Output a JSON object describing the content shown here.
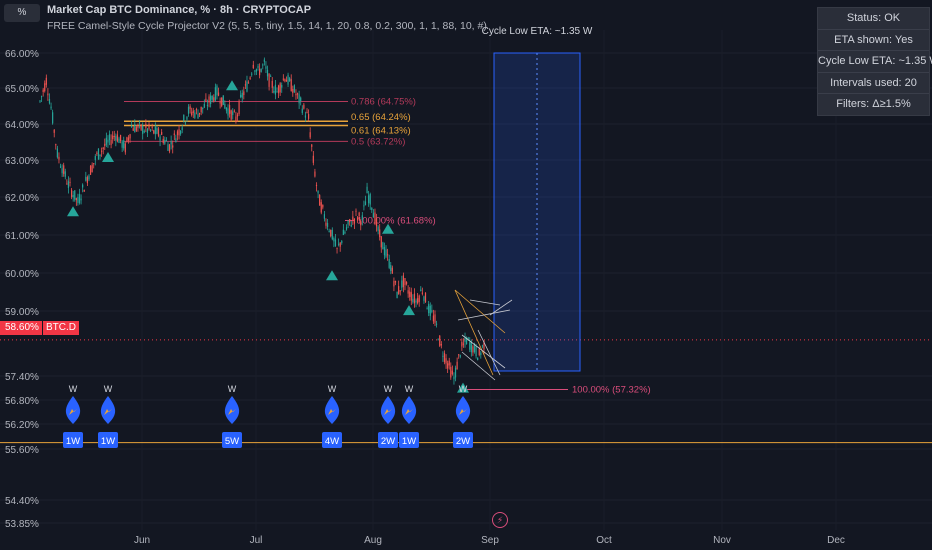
{
  "header": {
    "symbol_box": "%",
    "title": "Market Cap BTC Dominance, % · 8h · CRYPTOCAP",
    "indicator": "FREE Camel-Style Cycle Projector V2 (5, 5, 5, tiny, 1.5, 14, 1, 20, 0.8, 0.2, 300, 1, 1, 88, 10, #)"
  },
  "status_panel": {
    "rows": [
      "Status: OK",
      "ETA shown: Yes",
      "Cycle Low ETA: ~1.35 W",
      "Intervals used: 20",
      "Filters: Δ≥1.5%"
    ]
  },
  "current_price": {
    "value": "58.60%",
    "symbol": "BTC.D"
  },
  "eta_label": "Cycle Low ETA: ~1.35 W",
  "colors": {
    "bg": "#131722",
    "up": "#26a69a",
    "down": "#ef5350",
    "accent": "#f23645",
    "eta_box": "#2962ff"
  },
  "chart_data": {
    "type": "candlestick",
    "y_ticks": [
      "66.00%",
      "65.00%",
      "64.00%",
      "63.00%",
      "62.00%",
      "61.00%",
      "60.00%",
      "59.00%",
      "57.40%",
      "56.80%",
      "56.20%",
      "55.60%",
      "54.40%",
      "53.85%"
    ],
    "x_ticks": [
      "Jun",
      "Jul",
      "Aug",
      "Sep",
      "Oct",
      "Nov",
      "Dec"
    ],
    "price_path": [
      [
        0,
        64.75
      ],
      [
        4,
        65.3
      ],
      [
        7,
        64.6
      ],
      [
        11,
        63.4
      ],
      [
        18,
        62.6
      ],
      [
        24,
        62.15
      ],
      [
        30,
        62.8
      ],
      [
        36,
        63.35
      ],
      [
        42,
        63.65
      ],
      [
        48,
        63.9
      ],
      [
        54,
        63.55
      ],
      [
        58,
        64.1
      ],
      [
        64,
        64.05
      ],
      [
        70,
        64.0
      ],
      [
        76,
        63.9
      ],
      [
        82,
        63.6
      ],
      [
        88,
        64.0
      ],
      [
        94,
        64.5
      ],
      [
        100,
        64.45
      ],
      [
        106,
        64.7
      ],
      [
        112,
        65.0
      ],
      [
        118,
        64.6
      ],
      [
        124,
        64.3
      ],
      [
        128,
        64.9
      ],
      [
        132,
        65.25
      ],
      [
        135,
        65.75
      ],
      [
        138,
        65.5
      ],
      [
        142,
        65.7
      ],
      [
        145,
        65.3
      ],
      [
        150,
        65.0
      ],
      [
        155,
        65.4
      ],
      [
        160,
        65.1
      ],
      [
        165,
        64.7
      ],
      [
        170,
        64.3
      ],
      [
        173,
        63.2
      ],
      [
        176,
        62.3
      ],
      [
        180,
        61.8
      ],
      [
        184,
        61.4
      ],
      [
        188,
        60.9
      ],
      [
        192,
        61.3
      ],
      [
        196,
        61.6
      ],
      [
        200,
        61.8
      ],
      [
        204,
        61.7
      ],
      [
        207,
        62.4
      ],
      [
        210,
        62.1
      ],
      [
        214,
        61.4
      ],
      [
        218,
        60.9
      ],
      [
        222,
        60.5
      ],
      [
        226,
        59.8
      ],
      [
        230,
        60.1
      ],
      [
        234,
        59.8
      ],
      [
        238,
        59.6
      ],
      [
        242,
        59.9
      ],
      [
        246,
        59.4
      ],
      [
        250,
        59.1
      ],
      [
        254,
        58.4
      ],
      [
        258,
        58.0
      ],
      [
        262,
        57.6
      ],
      [
        266,
        58.3
      ],
      [
        270,
        58.6
      ],
      [
        274,
        58.4
      ],
      [
        278,
        58.2
      ],
      [
        282,
        58.6
      ]
    ],
    "fib_levels": [
      {
        "label": "0.786 (64.75%)",
        "value": 64.75
      },
      {
        "label": "0.65 (64.24%)",
        "value": 64.24
      },
      {
        "label": "0.61 (64.13%)",
        "value": 64.13
      },
      {
        "label": "0.5 (63.72%)",
        "value": 63.72
      },
      {
        "label": "100.00% (61.68%)",
        "value": 61.68
      },
      {
        "label": "100.00% (57.32%)",
        "value": 57.32
      }
    ],
    "cycle_lows": [
      {
        "price": 62.15,
        "tag": "1W"
      },
      {
        "price": 63.55,
        "tag": "1W"
      },
      {
        "price": 65.4,
        "tag": "5W"
      },
      {
        "price": 60.5,
        "tag": "4W"
      },
      {
        "price": 61.7,
        "tag": "2W"
      },
      {
        "price": 59.6,
        "tag": "1W"
      },
      {
        "price": 57.6,
        "tag": "2W"
      }
    ],
    "marker_top_label": "W",
    "horizontal_line": 55.95,
    "current": 58.6
  }
}
